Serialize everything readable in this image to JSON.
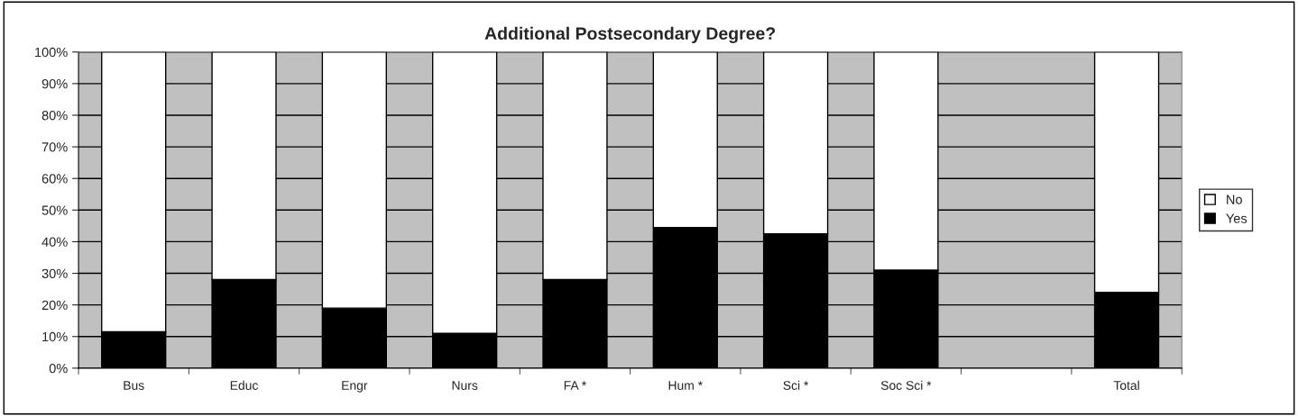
{
  "chart_data": {
    "type": "bar",
    "title": "Additional Postsecondary Degree?",
    "stacked": true,
    "categories": [
      "Bus",
      "Educ",
      "Engr",
      "Nurs",
      "FA *",
      "Hum *",
      "Sci *",
      "Soc Sci *",
      null,
      "Total"
    ],
    "series": [
      {
        "name": "Yes",
        "color": "#000000",
        "values": [
          11.5,
          28,
          19,
          11,
          28,
          44.5,
          42.5,
          31,
          null,
          24
        ]
      },
      {
        "name": "No",
        "color": "#ffffff",
        "values": [
          88.5,
          72,
          81,
          89,
          72,
          55.5,
          57.5,
          69,
          null,
          76
        ]
      }
    ],
    "ylim": [
      0,
      100
    ],
    "yticks": [
      {
        "value": 0,
        "label": "0%"
      },
      {
        "value": 10,
        "label": "10%"
      },
      {
        "value": 20,
        "label": "20%"
      },
      {
        "value": 30,
        "label": "30%"
      },
      {
        "value": 40,
        "label": "40%"
      },
      {
        "value": 50,
        "label": "50%"
      },
      {
        "value": 60,
        "label": "60%"
      },
      {
        "value": 70,
        "label": "70%"
      },
      {
        "value": 80,
        "label": "80%"
      },
      {
        "value": 90,
        "label": "90%"
      },
      {
        "value": 100,
        "label": "100%"
      }
    ],
    "grid": "y",
    "legend": "right"
  }
}
